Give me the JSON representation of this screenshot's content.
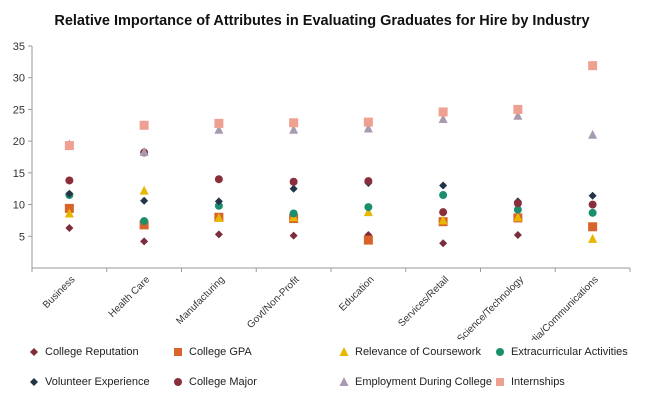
{
  "chart_data": {
    "type": "scatter",
    "title": "Relative Importance of Attributes in Evaluating Graduates for Hire by Industry",
    "xlabel": "",
    "ylabel": "",
    "ylim": [
      0,
      35
    ],
    "yticks": [
      5,
      10,
      15,
      20,
      25,
      30,
      35
    ],
    "categories": [
      "Business",
      "Health Care",
      "Manufacturing",
      "Govt/Non-Profit",
      "Education",
      "Services/Retail",
      "Science/Technology",
      "Media/Communications"
    ],
    "series": [
      {
        "name": "College Reputation",
        "marker": "diamond",
        "color": "#7b2d3b",
        "values": [
          6.3,
          4.2,
          5.3,
          5.1,
          5.2,
          3.9,
          5.2,
          6.5
        ]
      },
      {
        "name": "College GPA",
        "marker": "square",
        "color": "#d9642b",
        "values": [
          9.4,
          6.8,
          8.0,
          7.8,
          4.4,
          7.3,
          7.9,
          6.5
        ]
      },
      {
        "name": "Relevance of Coursework",
        "marker": "triangle",
        "color": "#e8b800",
        "values": [
          8.6,
          12.2,
          7.9,
          8.0,
          8.8,
          7.5,
          8.0,
          4.6
        ]
      },
      {
        "name": "Extracurricular Activities",
        "marker": "circle",
        "color": "#1a8f6e",
        "values": [
          11.5,
          7.4,
          9.8,
          8.6,
          9.6,
          11.5,
          9.2,
          8.7
        ]
      },
      {
        "name": "Volunteer Experience",
        "marker": "diamond",
        "color": "#243447",
        "values": [
          11.7,
          10.6,
          10.5,
          12.5,
          13.4,
          13.0,
          10.5,
          11.4
        ]
      },
      {
        "name": "College Major",
        "marker": "circle",
        "color": "#8a2e3c",
        "values": [
          13.8,
          18.2,
          14.0,
          13.6,
          13.7,
          8.8,
          10.2,
          10.0
        ]
      },
      {
        "name": "Employment During College",
        "marker": "triangle",
        "color": "#a89bb0",
        "values": [
          19.5,
          18.3,
          21.8,
          21.8,
          22.0,
          23.5,
          24.0,
          21.0
        ]
      },
      {
        "name": "Internships",
        "marker": "square",
        "color": "#f0a090",
        "values": [
          19.3,
          22.5,
          22.8,
          22.9,
          23.0,
          24.6,
          25.0,
          31.9
        ]
      }
    ],
    "legend_position": "bottom",
    "grid": false
  }
}
